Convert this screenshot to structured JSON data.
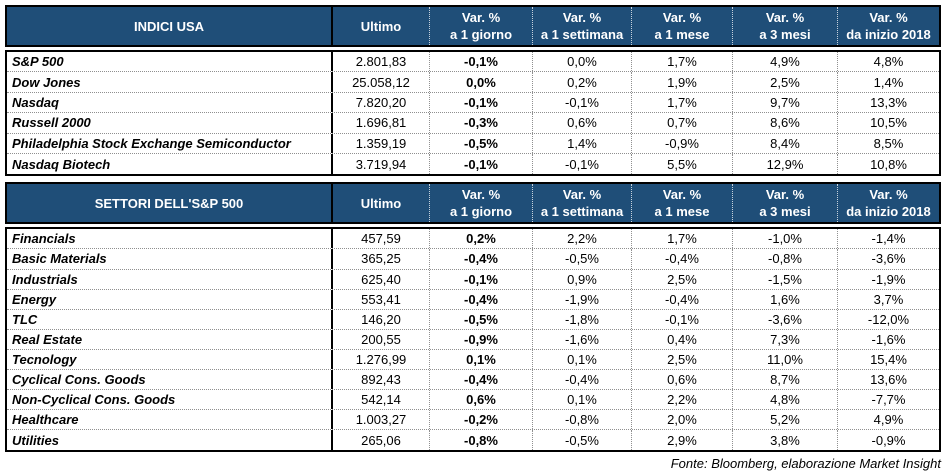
{
  "columns": [
    {
      "line1": "Ultimo",
      "line2": ""
    },
    {
      "line1": "Var. %",
      "line2": "a 1 giorno"
    },
    {
      "line1": "Var. %",
      "line2": "a 1 settimana"
    },
    {
      "line1": "Var. %",
      "line2": "a 1 mese"
    },
    {
      "line1": "Var. %",
      "line2": "a 3 mesi"
    },
    {
      "line1": "Var. %",
      "line2": "da inizio 2018"
    }
  ],
  "tables": [
    {
      "title": "INDICI USA",
      "rows": [
        {
          "label": "S&P 500",
          "values": [
            "2.801,83",
            "-0,1%",
            "0,0%",
            "1,7%",
            "4,9%",
            "4,8%"
          ]
        },
        {
          "label": "Dow Jones",
          "values": [
            "25.058,12",
            "0,0%",
            "0,2%",
            "1,9%",
            "2,5%",
            "1,4%"
          ]
        },
        {
          "label": "Nasdaq",
          "values": [
            "7.820,20",
            "-0,1%",
            "-0,1%",
            "1,7%",
            "9,7%",
            "13,3%"
          ]
        },
        {
          "label": "Russell 2000",
          "values": [
            "1.696,81",
            "-0,3%",
            "0,6%",
            "0,7%",
            "8,6%",
            "10,5%"
          ]
        },
        {
          "label": "Philadelphia Stock Exchange Semiconductor",
          "values": [
            "1.359,19",
            "-0,5%",
            "1,4%",
            "-0,9%",
            "8,4%",
            "8,5%"
          ]
        },
        {
          "label": "Nasdaq Biotech",
          "values": [
            "3.719,94",
            "-0,1%",
            "-0,1%",
            "5,5%",
            "12,9%",
            "10,8%"
          ]
        }
      ]
    },
    {
      "title": "SETTORI DELL'S&P 500",
      "rows": [
        {
          "label": "Financials",
          "values": [
            "457,59",
            "0,2%",
            "2,2%",
            "1,7%",
            "-1,0%",
            "-1,4%"
          ]
        },
        {
          "label": "Basic Materials",
          "values": [
            "365,25",
            "-0,4%",
            "-0,5%",
            "-0,4%",
            "-0,8%",
            "-3,6%"
          ]
        },
        {
          "label": "Industrials",
          "values": [
            "625,40",
            "-0,1%",
            "0,9%",
            "2,5%",
            "-1,5%",
            "-1,9%"
          ]
        },
        {
          "label": "Energy",
          "values": [
            "553,41",
            "-0,4%",
            "-1,9%",
            "-0,4%",
            "1,6%",
            "3,7%"
          ]
        },
        {
          "label": "TLC",
          "values": [
            "146,20",
            "-0,5%",
            "-1,8%",
            "-0,1%",
            "-3,6%",
            "-12,0%"
          ]
        },
        {
          "label": "Real Estate",
          "values": [
            "200,55",
            "-0,9%",
            "-1,6%",
            "0,4%",
            "7,3%",
            "-1,6%"
          ]
        },
        {
          "label": "Tecnology",
          "values": [
            "1.276,99",
            "0,1%",
            "0,1%",
            "2,5%",
            "11,0%",
            "15,4%"
          ]
        },
        {
          "label": "Cyclical Cons. Goods",
          "values": [
            "892,43",
            "-0,4%",
            "-0,4%",
            "0,6%",
            "8,7%",
            "13,6%"
          ]
        },
        {
          "label": "Non-Cyclical Cons. Goods",
          "values": [
            "542,14",
            "0,6%",
            "0,1%",
            "2,2%",
            "4,8%",
            "-7,7%"
          ]
        },
        {
          "label": "Healthcare",
          "values": [
            "1.003,27",
            "-0,2%",
            "-0,8%",
            "2,0%",
            "5,2%",
            "4,9%"
          ]
        },
        {
          "label": "Utilities",
          "values": [
            "265,06",
            "-0,8%",
            "-0,5%",
            "2,9%",
            "3,8%",
            "-0,9%"
          ]
        }
      ]
    }
  ],
  "footer": "Fonte: Bloomberg, elaborazione Market Insight",
  "colors": {
    "header_bg": "#1F4E78",
    "header_text": "#FFFFFF",
    "border": "#000000",
    "grid_dotted": "#8F8F8F"
  }
}
